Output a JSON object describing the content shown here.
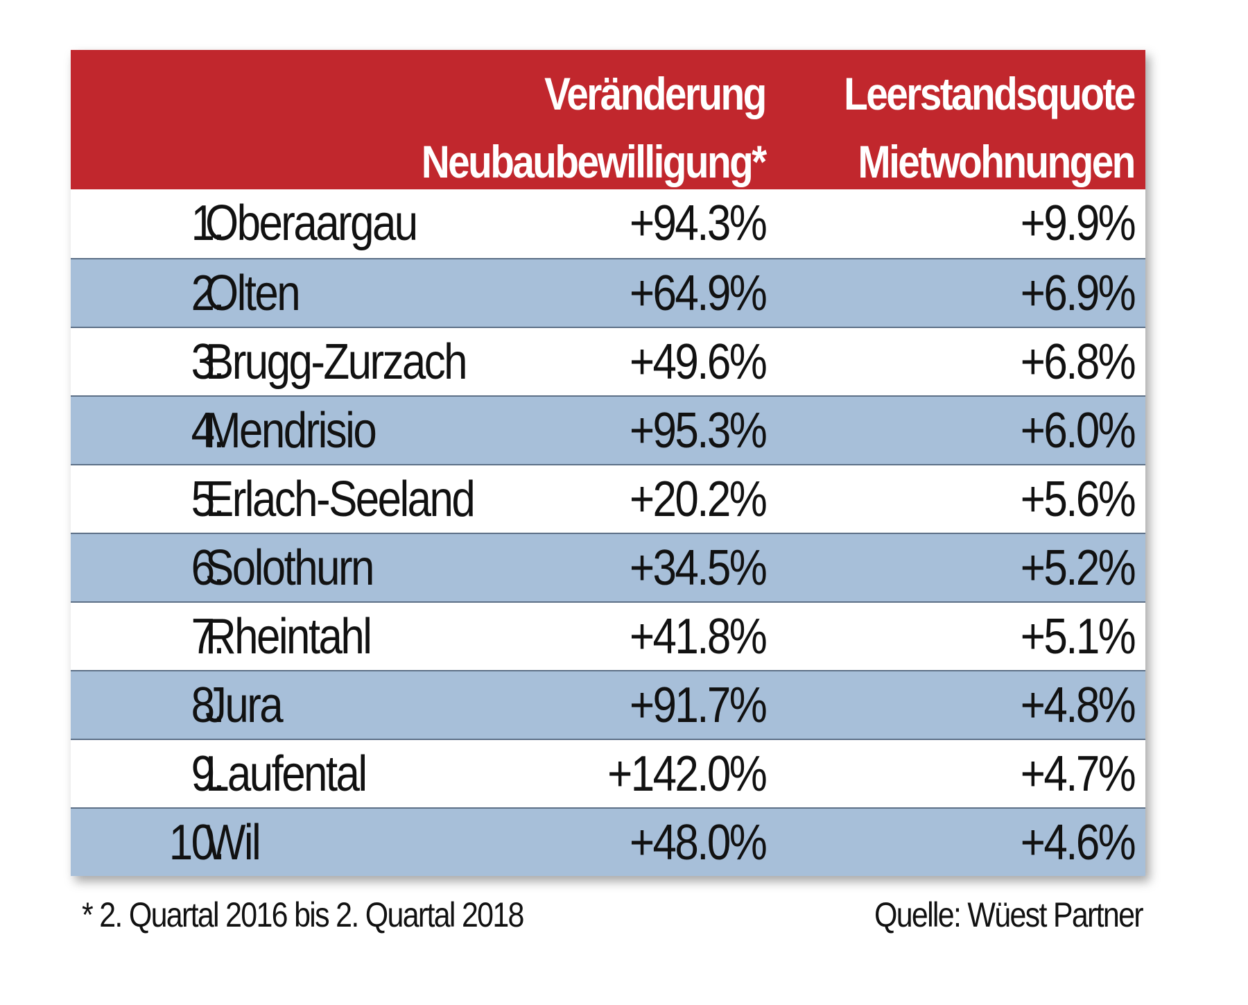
{
  "chart_data": {
    "type": "table",
    "columns": [
      "",
      "",
      "Veränderung Neubaubewilligung*",
      "Leerstandsquote Mietwohnungen"
    ],
    "header": {
      "col_a_line1": "Veränderung",
      "col_a_line2": "Neubaubewilligung*",
      "col_b_line1": "Leerstandsquote",
      "col_b_line2": "Mietwohnungen"
    },
    "rows": [
      {
        "rank": "1.",
        "region": "Oberaargau",
        "neubau": "+94.3%",
        "leerstand": "+9.9%"
      },
      {
        "rank": "2.",
        "region": "Olten",
        "neubau": "+64.9%",
        "leerstand": "+6.9%"
      },
      {
        "rank": "3.",
        "region": "Brugg-Zurzach",
        "neubau": "+49.6%",
        "leerstand": "+6.8%"
      },
      {
        "rank": "4.",
        "region": "Mendrisio",
        "neubau": "+95.3%",
        "leerstand": "+6.0%"
      },
      {
        "rank": "5.",
        "region": "Erlach-Seeland",
        "neubau": "+20.2%",
        "leerstand": "+5.6%"
      },
      {
        "rank": "6.",
        "region": "Solothurn",
        "neubau": "+34.5%",
        "leerstand": "+5.2%"
      },
      {
        "rank": "7.",
        "region": "Rheintahl",
        "neubau": "+41.8%",
        "leerstand": "+5.1%"
      },
      {
        "rank": "8.",
        "region": "Jura",
        "neubau": "+91.7%",
        "leerstand": "+4.8%"
      },
      {
        "rank": "9.",
        "region": "Laufental",
        "neubau": "+142.0%",
        "leerstand": "+4.7%"
      },
      {
        "rank": "10.",
        "region": "Wil",
        "neubau": "+48.0%",
        "leerstand": "+4.6%"
      }
    ],
    "footnote": "* 2. Quartal 2016 bis 2. Quartal 2018",
    "source": "Quelle: Wüest Partner"
  },
  "colors": {
    "header_bg": "#c1272d",
    "header_text": "#ffffff",
    "row_alt_bg": "#a7bfd9",
    "row_bg": "#ffffff",
    "divider": "#5c6f86",
    "text": "#111111"
  }
}
